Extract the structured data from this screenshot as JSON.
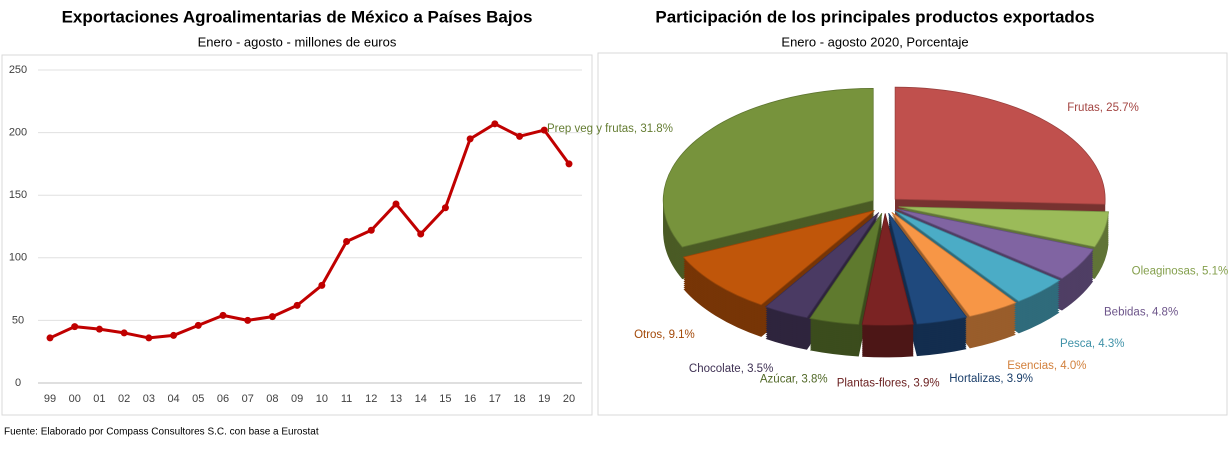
{
  "chart_data": [
    {
      "type": "line",
      "title": "Exportaciones Agroalimentarias de México a Países Bajos",
      "subtitle": "Enero - agosto - millones de euros",
      "categories": [
        "99",
        "00",
        "01",
        "02",
        "03",
        "04",
        "05",
        "06",
        "07",
        "08",
        "09",
        "10",
        "11",
        "12",
        "13",
        "14",
        "15",
        "16",
        "17",
        "18",
        "19",
        "20"
      ],
      "values": [
        36,
        45,
        43,
        40,
        36,
        38,
        46,
        54,
        50,
        53,
        62,
        78,
        113,
        122,
        143,
        119,
        140,
        195,
        207,
        197,
        202,
        175
      ],
      "color": "#c00000",
      "ylim": [
        0,
        250
      ],
      "yticks": [
        0,
        50,
        100,
        150,
        200,
        250
      ],
      "grid": true
    },
    {
      "type": "pie",
      "title": "Participación de los principales productos exportados",
      "subtitle": "Enero - agosto 2020, Porcentaje",
      "values": [
        25.7,
        5.1,
        4.8,
        4.3,
        4.0,
        3.9,
        3.9,
        3.8,
        3.5,
        9.1,
        31.8
      ],
      "value_labels": [
        "Frutas, 25.7%",
        "Oleaginosas, 5.1%",
        "Bebidas, 4.8%",
        "Pesca, 4.3%",
        "Esencias, 4.0%",
        "Hortalizas, 3.9%",
        "Plantas-flores, 3.9%",
        "Azúcar, 3.8%",
        "Chocolate, 3.5%",
        "Otros, 9.1%",
        "Prep veg y frutas, 31.8%"
      ],
      "colors": [
        "#c0504d",
        "#9bbb59",
        "#8064a2",
        "#4bacc6",
        "#f79646",
        "#1f497d",
        "#7b2323",
        "#5f7a2e",
        "#4a3a63",
        "#c0560a",
        "#77933c"
      ]
    }
  ],
  "source": "Fuente: Elaborado por Compass Consultores S.C. con base a Eurostat"
}
